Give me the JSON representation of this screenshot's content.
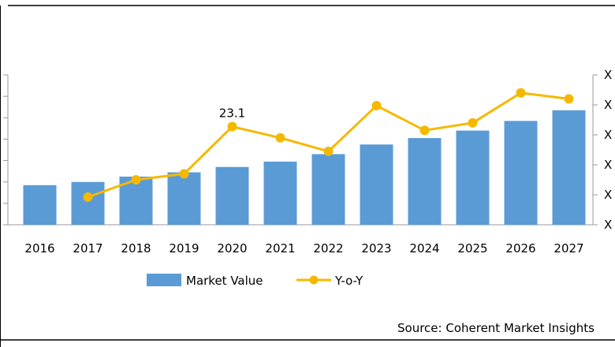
{
  "chart_data": {
    "type": "bar",
    "categories": [
      "2016",
      "2017",
      "2018",
      "2019",
      "2020",
      "2021",
      "2022",
      "2023",
      "2024",
      "2025",
      "2026",
      "2027"
    ],
    "series": [
      {
        "name": "Market Value",
        "type": "bar",
        "axis": "left",
        "color": "#5B9BD5",
        "values": [
          37,
          40,
          45,
          49,
          54,
          59,
          66,
          75,
          81,
          88,
          97,
          107
        ]
      },
      {
        "name": "Y-o-Y",
        "type": "line",
        "axis": "right",
        "color": "#F5B800",
        "values": [
          null,
          13.7,
          16.0,
          16.8,
          23.1,
          21.6,
          19.8,
          25.9,
          22.6,
          23.6,
          27.6,
          26.8
        ]
      }
    ],
    "data_labels": [
      {
        "series": 1,
        "index": 4,
        "text": "23.1"
      }
    ],
    "ylim_left": [
      0,
      140
    ],
    "ylim_right": [
      10,
      30
    ],
    "right_tick_label": "X",
    "grid": false,
    "legend_position": "bottom",
    "source": "Source: Coherent Market Insights"
  }
}
